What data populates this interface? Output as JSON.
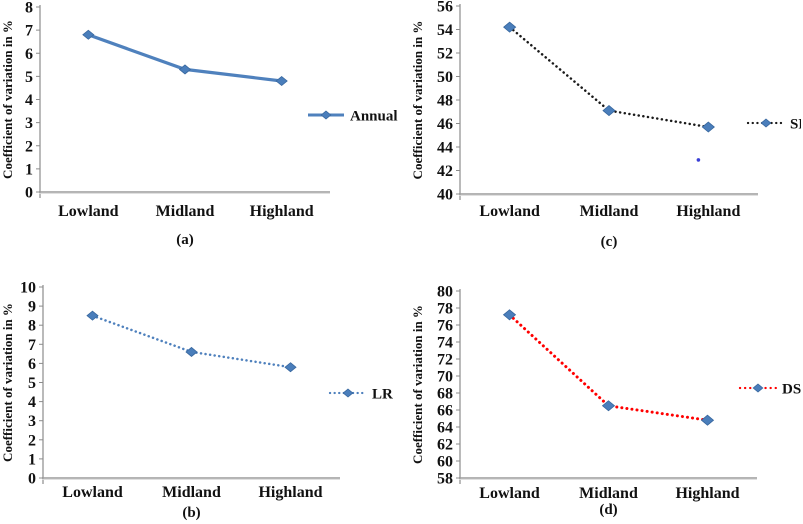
{
  "figure": {
    "background": "#ffffff",
    "text_color": "#111111",
    "accent_blue": "#4f81bd",
    "axis_color": "#9b9b9b"
  },
  "chart_data": [
    {
      "id": "a",
      "type": "line",
      "panel_caption": "(a)",
      "ylabel": "Coefficient of variation in %",
      "categories": [
        "Lowland",
        "Midland",
        "Highland"
      ],
      "ylim": [
        0,
        8
      ],
      "yticks": [
        0,
        1,
        2,
        3,
        4,
        5,
        6,
        7,
        8
      ],
      "grid": false,
      "legend": {
        "label": "Annual",
        "position": "right"
      },
      "series": [
        {
          "name": "Annual",
          "values": [
            6.8,
            5.3,
            4.8
          ],
          "line_style": "solid",
          "line_color": "#4f81bd",
          "marker": "diamond",
          "marker_color": "#4a7ebb"
        }
      ]
    },
    {
      "id": "c",
      "type": "line",
      "panel_caption": "(c)",
      "ylabel": "Coefficient of variation in %",
      "categories": [
        "Lowland",
        "Midland",
        "Highland"
      ],
      "ylim": [
        40,
        56
      ],
      "yticks": [
        40,
        42,
        44,
        46,
        48,
        50,
        52,
        54,
        56
      ],
      "grid": false,
      "legend": {
        "label": "SR",
        "position": "right"
      },
      "series": [
        {
          "name": "SR",
          "values": [
            54.2,
            47.1,
            45.7
          ],
          "line_style": "dotted",
          "line_color": "#1a1a1a",
          "marker": "diamond",
          "marker_color": "#4a7ebb"
        }
      ],
      "stray_point": {
        "cat_pos": 1.9,
        "value": 42.9,
        "color": "#3a3fd6"
      }
    },
    {
      "id": "b",
      "type": "line",
      "panel_caption": "(b)",
      "ylabel": "Coefficient of variation in %",
      "categories": [
        "Lowland",
        "Midland",
        "Highland"
      ],
      "ylim": [
        0,
        10
      ],
      "yticks": [
        0,
        1,
        2,
        3,
        4,
        5,
        6,
        7,
        8,
        9,
        10
      ],
      "grid": false,
      "legend": {
        "label": "LR",
        "position": "right"
      },
      "series": [
        {
          "name": "LR",
          "values": [
            8.5,
            6.6,
            5.8
          ],
          "line_style": "dotted",
          "line_color": "#4f81bd",
          "marker": "diamond",
          "marker_color": "#4a7ebb"
        }
      ]
    },
    {
      "id": "d",
      "type": "line",
      "panel_caption": "(d)",
      "ylabel": "Coefficient of variation in %",
      "categories": [
        "Lowland",
        "Midland",
        "Highland"
      ],
      "ylim": [
        58,
        80
      ],
      "yticks": [
        58,
        60,
        62,
        64,
        66,
        68,
        70,
        72,
        74,
        76,
        78,
        80
      ],
      "grid": false,
      "legend": {
        "label": "DS",
        "position": "right"
      },
      "series": [
        {
          "name": "DS",
          "values": [
            77.2,
            66.5,
            64.8
          ],
          "line_style": "dotted",
          "line_color": "#ff0000",
          "marker": "diamond",
          "marker_color": "#4a7ebb"
        }
      ]
    }
  ]
}
